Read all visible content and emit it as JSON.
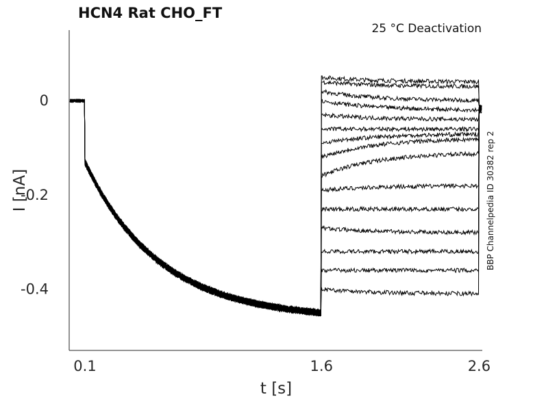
{
  "chart_data": {
    "type": "line",
    "title": "HCN4  Rat  CHO_FT",
    "condition": "25 °C  Deactivation",
    "side_label": "BBP Channelpedia ID 30382 rep 2",
    "xlabel": "t [s]",
    "ylabel": "I [nA]",
    "xlim": [
      0.0,
      2.62
    ],
    "ylim": [
      -0.53,
      0.15
    ],
    "xticks": [
      {
        "value": 0.1,
        "label": "0.1"
      },
      {
        "value": 1.6,
        "label": "1.6"
      },
      {
        "value": 2.6,
        "label": "2.6"
      }
    ],
    "yticks": [
      {
        "value": 0,
        "label": "0"
      },
      {
        "value": -0.2,
        "label": "-0.2"
      },
      {
        "value": -0.4,
        "label": "-0.4"
      }
    ],
    "grid": false,
    "line_color": "#000000",
    "noise": 0.006,
    "protocol": {
      "holding_end": 0.1,
      "prepulse_end": 1.6,
      "test_end": 2.6,
      "holding_current": 0.0,
      "prepulse_start_current": -0.13,
      "prepulse_end_current": -0.45,
      "tail_current": -0.01
    },
    "series": [
      {
        "start": 0.05,
        "end": 0.04
      },
      {
        "start": 0.04,
        "end": 0.03
      },
      {
        "start": 0.02,
        "end": 0.0
      },
      {
        "start": 0.0,
        "end": -0.02
      },
      {
        "start": -0.03,
        "end": -0.04
      },
      {
        "start": -0.06,
        "end": -0.06
      },
      {
        "start": -0.09,
        "end": -0.07
      },
      {
        "start": -0.12,
        "end": -0.08
      },
      {
        "start": -0.16,
        "end": -0.11
      },
      {
        "start": -0.19,
        "end": -0.18
      },
      {
        "start": -0.23,
        "end": -0.23
      },
      {
        "start": -0.27,
        "end": -0.28
      },
      {
        "start": -0.32,
        "end": -0.32
      },
      {
        "start": -0.36,
        "end": -0.36
      },
      {
        "start": -0.4,
        "end": -0.41
      }
    ]
  }
}
